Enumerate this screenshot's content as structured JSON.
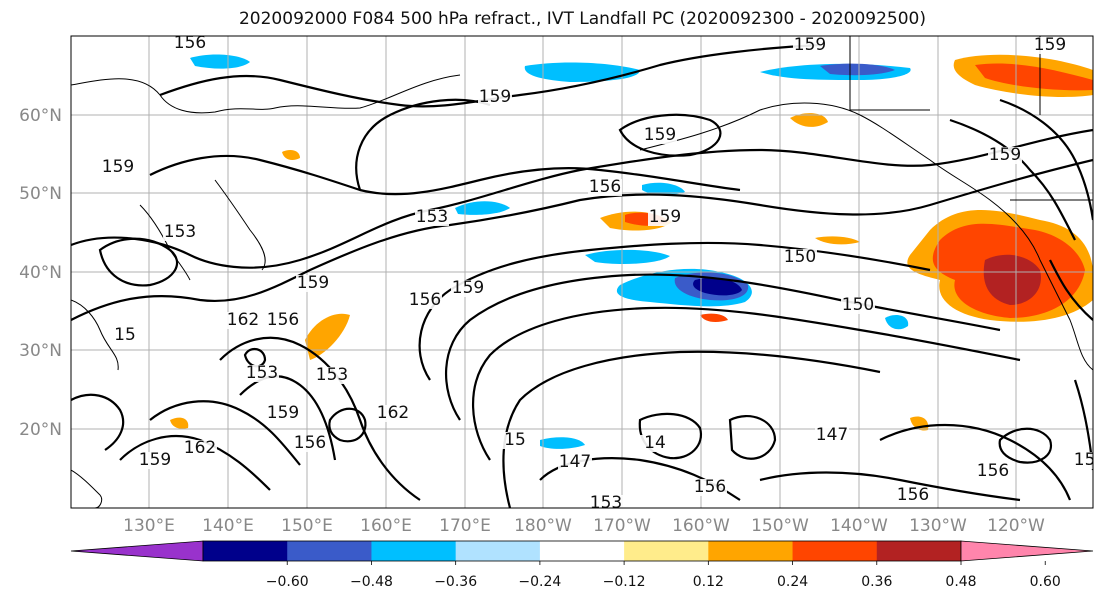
{
  "title": "2020092000 F084 500 hPa refract., IVT Landfall PC (2020092300 - 2020092500)",
  "axes": {
    "lat_labels": [
      "60°N",
      "50°N",
      "40°N",
      "30°N",
      "20°N"
    ],
    "lon_labels": [
      "130°E",
      "140°E",
      "150°E",
      "160°E",
      "170°E",
      "180°W",
      "170°W",
      "160°W",
      "150°W",
      "140°W",
      "130°W",
      "120°W"
    ],
    "grid": true
  },
  "colorbar": {
    "tick_labels": [
      "-0.60",
      "-0.48",
      "-0.36",
      "-0.24",
      "-0.12",
      "0.12",
      "0.24",
      "0.36",
      "0.48",
      "0.60"
    ],
    "colors": [
      "#9932CC",
      "#00008B",
      "#3A5BC9",
      "#00BFFF",
      "#B0E2FF",
      "#FFFFFF",
      "#FFEC8B",
      "#FFA500",
      "#FF4500",
      "#B22222",
      "#FF85AC"
    ],
    "extend": "both"
  },
  "contours": {
    "labels": [
      "156",
      "159",
      "159",
      "159",
      "159",
      "159",
      "156",
      "153",
      "153",
      "159",
      "159",
      "156",
      "162",
      "156",
      "159",
      "153",
      "153",
      "162",
      "159",
      "156",
      "162",
      "159",
      "150",
      "150",
      "147",
      "147",
      "156",
      "153",
      "156",
      "156",
      "159",
      "15",
      "14",
      "159",
      "15"
    ]
  }
}
